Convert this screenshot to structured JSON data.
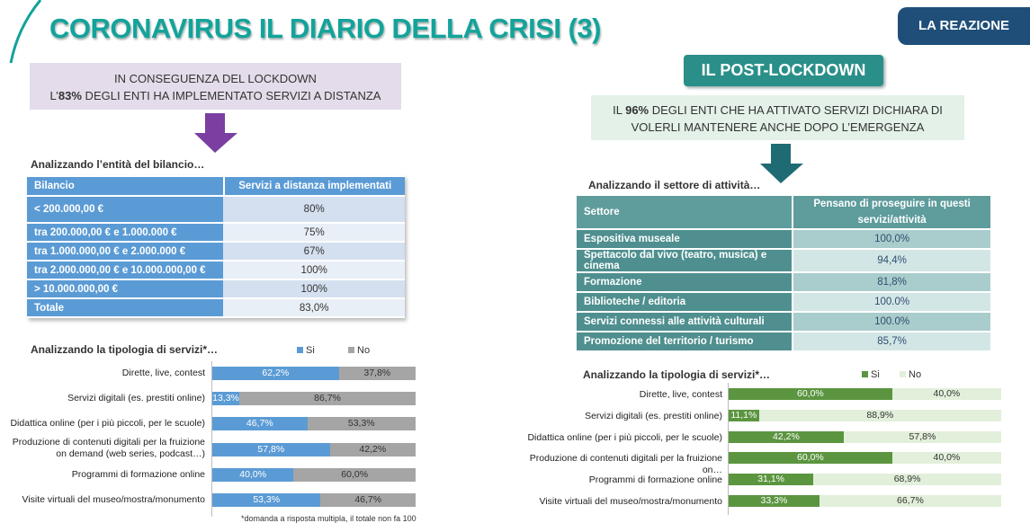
{
  "header": {
    "title": "CORONAVIRUS IL DIARIO DELLA CRISI (3)",
    "badge": "LA REAZIONE"
  },
  "left": {
    "callout_line1": "IN CONSEGUENZA DEL LOCKDOWN",
    "callout_pre": "L’",
    "callout_pct": "83%",
    "callout_rest": " DEGLI ENTI HA IMPLEMENTATO SERVIZI A DISTANZA",
    "table_caption": "Analizzando l’entità del bilancio…",
    "table": {
      "headers": [
        "Bilancio",
        "Servizi a distanza implementati"
      ],
      "rows": [
        [
          "< 200.000,00 €",
          "80%"
        ],
        [
          "tra 200.000,00 € e  1.000.000 €",
          "75%"
        ],
        [
          "tra 1.000.000,00 € e 2.000.000 €",
          "67%"
        ],
        [
          "tra 2.000.000,00 € e 10.000.000,00 €",
          "100%"
        ],
        [
          "> 10.000.000,00 €",
          "100%"
        ],
        [
          "Totale",
          "83,0%"
        ]
      ]
    },
    "chart_caption": "Analizzando la tipologia di servizi*…",
    "footnote": "*domanda a risposta multipla, il totale non fa 100"
  },
  "right": {
    "section_title": "IL POST-LOCKDOWN",
    "callout_pre": "IL ",
    "callout_pct": "96%",
    "callout_rest": " DEGLI ENTI CHE HA ATTIVATO SERVIZI DICHIARA DI",
    "callout_line2": "VOLERLI MANTENERE ANCHE DOPO L’EMERGENZA",
    "table_caption": "Analizzando il settore di attività…",
    "table": {
      "headers": [
        "Settore",
        "Pensano di proseguire in questi servizi/attività"
      ],
      "rows": [
        [
          "Espositiva museale",
          "100,0%"
        ],
        [
          "Spettacolo dal vivo (teatro, musica) e cinema",
          "94,4%"
        ],
        [
          "Formazione",
          "81,8%"
        ],
        [
          "Biblioteche / editoria",
          "100.0%"
        ],
        [
          "Servizi connessi alle attività culturali",
          "100.0%"
        ],
        [
          "Promozione del territorio / turismo",
          "85,7%"
        ]
      ]
    },
    "chart_caption": "Analizzando la tipologia di servizi*…"
  },
  "chart_data": [
    {
      "type": "bar",
      "stacked": true,
      "orientation": "horizontal",
      "title": "Analizzando la tipologia di servizi*…",
      "categories": [
        "Dirette, live, contest",
        "Servizi digitali (es. prestiti online)",
        "Didattica online (per i più piccoli, per le scuole)",
        "Produzione di contenuti digitali per la fruizione on demand (web series, podcast…)",
        "Programmi di formazione online",
        "Visite virtuali del museo/mostra/monumento"
      ],
      "series": [
        {
          "name": "Si",
          "color": "#5b9bd5",
          "values": [
            62.2,
            13.3,
            46.7,
            57.8,
            40.0,
            53.3
          ],
          "labels": [
            "62,2%",
            "13,3%",
            "46,7%",
            "57,8%",
            "40,0%",
            "53,3%"
          ]
        },
        {
          "name": "No",
          "color": "#a5a5a5",
          "values": [
            37.8,
            86.7,
            53.3,
            42.2,
            60.0,
            46.7
          ],
          "labels": [
            "37,8%",
            "86,7%",
            "53,3%",
            "42,2%",
            "60,0%",
            "46,7%"
          ]
        }
      ],
      "xlim": [
        0,
        100
      ],
      "legend": "top-right"
    },
    {
      "type": "bar",
      "stacked": true,
      "orientation": "horizontal",
      "title": "Analizzando la tipologia di servizi*…",
      "categories": [
        "Dirette, live, contest",
        "Servizi digitali (es. prestiti online)",
        "Didattica online (per i più piccoli, per le scuole)",
        "Produzione di contenuti digitali per la fruizione on…",
        "Programmi di formazione online",
        "Visite virtuali del museo/mostra/monumento"
      ],
      "series": [
        {
          "name": "Si",
          "color": "#5b9540",
          "values": [
            60.0,
            11.1,
            42.2,
            60.0,
            31.1,
            33.3
          ],
          "labels": [
            "60,0%",
            "11,1%",
            "42,2%",
            "60,0%",
            "31,1%",
            "33,3%"
          ]
        },
        {
          "name": "No",
          "color": "#e2efda",
          "values": [
            40.0,
            88.9,
            57.8,
            40.0,
            68.9,
            66.7
          ],
          "labels": [
            "40,0%",
            "88,9%",
            "57,8%",
            "40,0%",
            "68,9%",
            "66,7%"
          ]
        }
      ],
      "xlim": [
        0,
        100
      ],
      "legend": "top-right"
    }
  ]
}
